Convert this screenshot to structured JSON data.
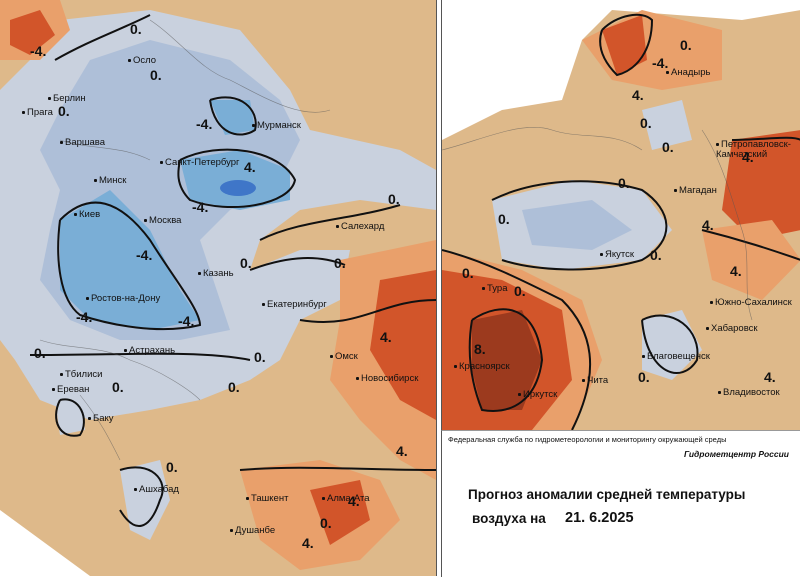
{
  "colors": {
    "strong_warm": "#d2552a",
    "warm": "#e9a06b",
    "mild_warm": "#deb98a",
    "dark_red": "#9c3a1e",
    "neutral": "#c9d1de",
    "cool": "#aebfd8",
    "cold": "#7aaed6",
    "very_cold": "#3f76c8",
    "isoline": "#111111"
  },
  "west_map": {
    "cities": [
      "Осло",
      "Берлин",
      "Прага",
      "Варшава",
      "Мурманск",
      "Санкт-Петербург",
      "Минск",
      "Киев",
      "Москва",
      "Салехард",
      "Казань",
      "Ростов-на-Дону",
      "Екатеринбург",
      "Астрахань",
      "Тбилиси",
      "Ереван",
      "Баку",
      "Омск",
      "Новосибирск",
      "Ашхабад",
      "Ташкент",
      "Алма-Ата",
      "Душанбе"
    ],
    "isolines": [
      "-4.",
      "0.",
      "0.",
      "0.",
      "-4.",
      "-4.",
      "4.",
      "-4.",
      "0.",
      "0.",
      "-4.",
      "0.",
      "-4.",
      "-4.",
      "4.",
      "0.",
      "0.",
      "0.",
      "0.",
      "0.",
      "4.",
      "4.",
      "0.",
      "4."
    ]
  },
  "east_map": {
    "cities": [
      "Анадырь",
      "Петропавловск-Камчатский",
      "Магадан",
      "Якутск",
      "Тура",
      "Южно-Сахалинск",
      "Хабаровск",
      "Благовещенск",
      "Красноярск",
      "Иркутск",
      "Чита",
      "Владивосток"
    ],
    "isolines": [
      "0.",
      "-4.",
      "0.",
      "4.",
      "0.",
      "0.",
      "4.",
      "0.",
      "0.",
      "0.",
      "4.",
      "0.",
      "4.",
      "8.",
      "0.",
      "4."
    ]
  },
  "legend": {
    "agency": "Федеральная служба по гидрометеорологии и мониторингу окружающей среды",
    "center": "Гидрометцентр России",
    "title_line1": "Прогноз аномалии средней температуры",
    "title_line2": "воздуха на",
    "date": "21. 6.2025"
  }
}
